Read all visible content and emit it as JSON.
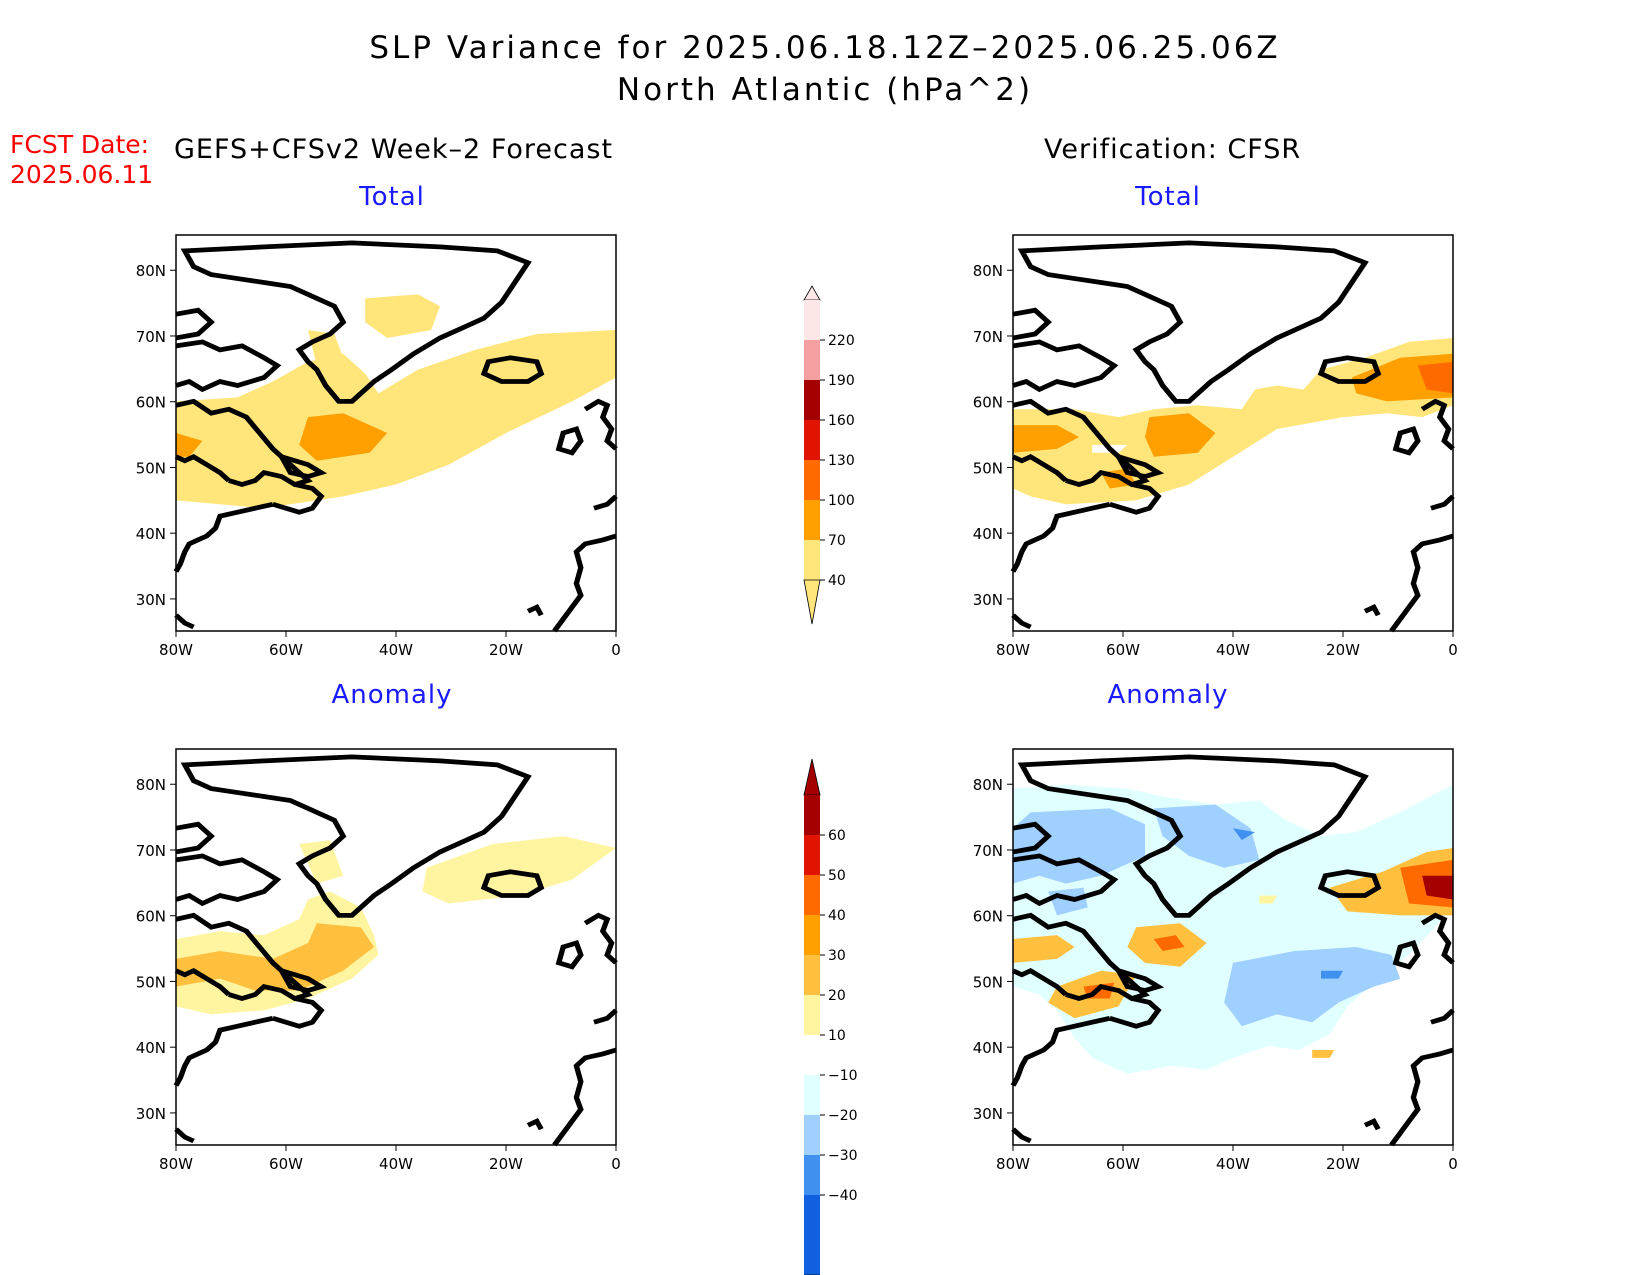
{
  "title_line1": "SLP Variance for 2025.06.18.12Z–2025.06.25.06Z",
  "title_line2": "North Atlantic (hPa^2)",
  "fcst_label": "FCST Date:",
  "fcst_date": "2025.06.11",
  "left_header": "GEFS+CFSv2 Week–2 Forecast",
  "right_header": "Verification: CFSR",
  "panels": [
    {
      "id": "fcst-total",
      "subtitle": "Total"
    },
    {
      "id": "verif-total",
      "subtitle": "Total"
    },
    {
      "id": "fcst-anomaly",
      "subtitle": "Anomaly"
    },
    {
      "id": "verif-anomaly",
      "subtitle": "Anomaly"
    }
  ],
  "lat_ticks": [
    "80N",
    "70N",
    "60N",
    "50N",
    "40N",
    "30N"
  ],
  "lon_ticks": [
    "80W",
    "60W",
    "40W",
    "20W",
    "0"
  ],
  "total_colorbar": {
    "labels": [
      "220",
      "190",
      "160",
      "130",
      "100",
      "70",
      "40"
    ],
    "colors": [
      "#fde6e6",
      "#f4a0a0",
      "#a50000",
      "#e01400",
      "#ff6a00",
      "#ffa000",
      "#ffe57a"
    ]
  },
  "anomaly_colorbar": {
    "labels": [
      "60",
      "50",
      "40",
      "30",
      "20",
      "10",
      "−10",
      "−20",
      "−30",
      "−40"
    ],
    "colors": [
      "#a50000",
      "#e01400",
      "#ff6a00",
      "#ffa000",
      "#ffc040",
      "#fff5a0",
      "#ffffff",
      "#e0ffff",
      "#a0d0ff",
      "#4090f0",
      "#1060e0",
      "#1060e0"
    ]
  }
}
